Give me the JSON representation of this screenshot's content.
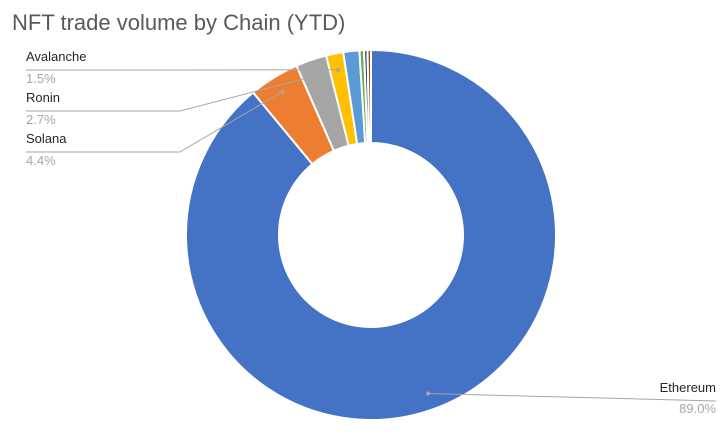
{
  "chart_data": {
    "type": "pie",
    "variant": "donut",
    "title": "NFT trade volume by Chain (YTD)",
    "legend": "none",
    "slices": [
      {
        "label": "Ethereum",
        "value": 89.0,
        "value_label": "89.0%",
        "color": "#4472C4",
        "labeled": true
      },
      {
        "label": "Solana",
        "value": 4.4,
        "value_label": "4.4%",
        "color": "#ED7D31",
        "labeled": true
      },
      {
        "label": "Ronin",
        "value": 2.7,
        "value_label": "2.7%",
        "color": "#A5A5A5",
        "labeled": true
      },
      {
        "label": "Avalanche",
        "value": 1.5,
        "value_label": "1.5%",
        "color": "#FFC000",
        "labeled": true
      },
      {
        "label": "",
        "value": 1.4,
        "value_label": "",
        "color": "#5B9BD5",
        "labeled": false
      },
      {
        "label": "",
        "value": 0.4,
        "value_label": "",
        "color": "#70AD47",
        "labeled": false
      },
      {
        "label": "",
        "value": 0.3,
        "value_label": "",
        "color": "#264478",
        "labeled": false
      },
      {
        "label": "",
        "value": 0.3,
        "value_label": "",
        "color": "#9E480E",
        "labeled": false
      }
    ]
  }
}
